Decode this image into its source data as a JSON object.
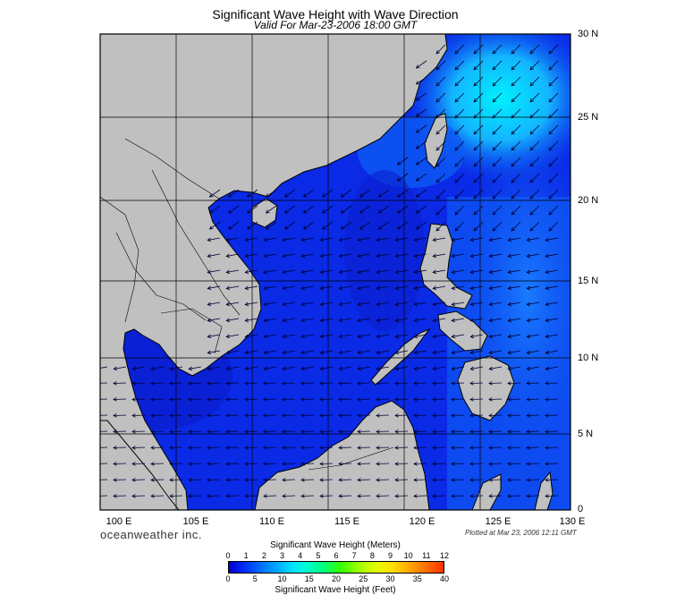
{
  "header": {
    "title": "Significant Wave Height with Wave Direction",
    "subtitle": "Valid For Mar-23-2006 18:00 GMT"
  },
  "axes": {
    "latitude_labels": [
      "30 N",
      "25 N",
      "20 N",
      "15 N",
      "10 N",
      "5 N",
      "0"
    ],
    "longitude_labels": [
      "100 E",
      "105 E",
      "110 E",
      "115 E",
      "120 E",
      "125 E",
      "130 E"
    ],
    "lat_range": [
      0,
      30
    ],
    "lon_range": [
      100,
      130
    ],
    "grid": true
  },
  "footer": {
    "brand": "oceanweather inc.",
    "plotted": "Plotted at Mar 23, 2006 12:11 GMT"
  },
  "colorbar": {
    "top_title": "Significant Wave Height (Meters)",
    "meters_ticks": [
      "0",
      "1",
      "2",
      "3",
      "4",
      "5",
      "6",
      "7",
      "8",
      "9",
      "10",
      "11",
      "12"
    ],
    "bottom_title": "Significant Wave Height (Feet)",
    "feet_ticks": [
      "0",
      "5",
      "10",
      "15",
      "20",
      "25",
      "30",
      "35",
      "40"
    ]
  },
  "colors": {
    "land": "#c0c0c0",
    "ocean_low": "#0a1fe0",
    "ocean_mid": "#0c4cf0",
    "ocean_high": "#1ea0ff",
    "ocean_peak": "#00e8ff",
    "arrow": "#000033"
  }
}
